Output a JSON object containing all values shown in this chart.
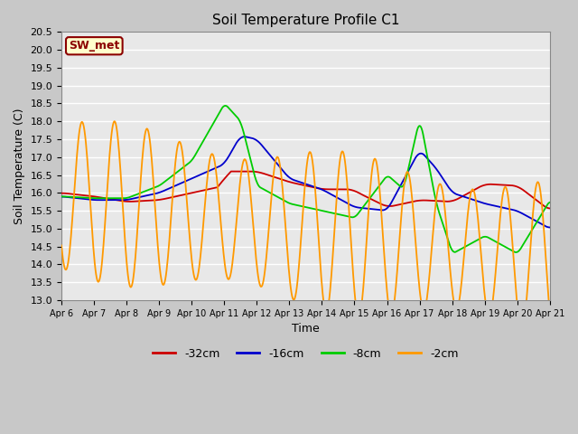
{
  "title": "Soil Temperature Profile C1",
  "xlabel": "Time",
  "ylabel": "Soil Temperature (C)",
  "ylim": [
    13.0,
    20.5
  ],
  "yticks": [
    13.0,
    13.5,
    14.0,
    14.5,
    15.0,
    15.5,
    16.0,
    16.5,
    17.0,
    17.5,
    18.0,
    18.5,
    19.0,
    19.5,
    20.0,
    20.5
  ],
  "plot_bg": "#e8e8e8",
  "grid_color": "white",
  "annotation_text": "SW_met",
  "annotation_bg": "#ffffcc",
  "annotation_border": "#8b0000",
  "xtick_labels": [
    "Apr 6",
    "Apr 7",
    "Apr 8",
    "Apr 9",
    "Apr 10",
    "Apr 11",
    "Apr 12",
    "Apr 13",
    "Apr 14",
    "Apr 15",
    "Apr 16",
    "Apr 17",
    "Apr 18",
    "Apr 19",
    "Apr 20",
    "Apr 21"
  ],
  "legend_entries": [
    "-32cm",
    "-16cm",
    "-8cm",
    "-2cm"
  ],
  "legend_colors": [
    "#cc0000",
    "#0000cc",
    "#00cc00",
    "#ff9900"
  ],
  "series_colors": [
    "#cc0000",
    "#0000cc",
    "#00cc00",
    "#ff9900"
  ],
  "fig_bg": "#c8c8c8"
}
